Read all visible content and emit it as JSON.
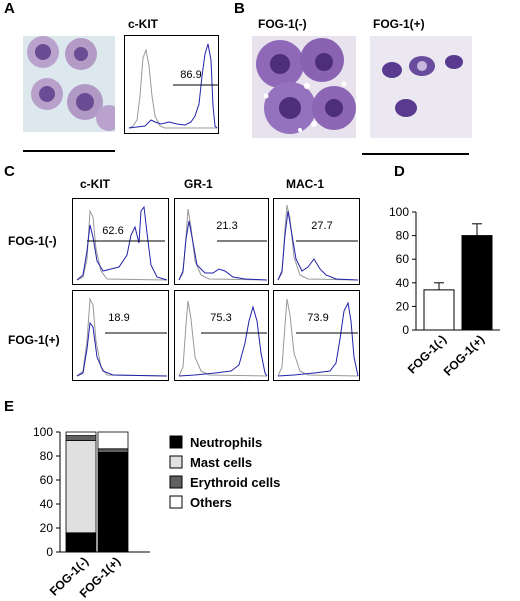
{
  "panels": {
    "A": {
      "letter": "A",
      "hist_title": "c-KIT",
      "hist_value": "86.9"
    },
    "B": {
      "letter": "B",
      "label_left": "FOG-1(-)",
      "label_right": "FOG-1(+)"
    },
    "C": {
      "letter": "C",
      "columns": [
        "c-KIT",
        "GR-1",
        "MAC-1"
      ],
      "rows": [
        "FOG-1(-)",
        "FOG-1(+)"
      ],
      "values": [
        [
          "62.6",
          "21.3",
          "27.7"
        ],
        [
          "18.9",
          "75.3",
          "73.9"
        ]
      ]
    },
    "D": {
      "letter": "D"
    },
    "E": {
      "letter": "E"
    }
  },
  "chart_data": [
    {
      "panel": "D",
      "type": "bar",
      "categories": [
        "FOG-1(-)",
        "FOG-1(+)"
      ],
      "values": [
        34,
        80
      ],
      "errors": [
        6,
        10
      ],
      "colors": [
        "#ffffff",
        "#000000"
      ],
      "ylim": [
        0,
        100
      ],
      "yticks": [
        0,
        20,
        40,
        60,
        80,
        100
      ],
      "title": "",
      "xlabel": "",
      "ylabel": ""
    },
    {
      "panel": "E",
      "type": "bar",
      "stacked": true,
      "categories": [
        "FOG-1(-)",
        "FOG-1(+)"
      ],
      "series": [
        {
          "name": "Neutrophils",
          "values": [
            16,
            83
          ],
          "color": "#000000"
        },
        {
          "name": "Mast cells",
          "values": [
            77,
            0
          ],
          "color": "#e0e0e0"
        },
        {
          "name": "Erythroid cells",
          "values": [
            4,
            3
          ],
          "color": "#606060"
        },
        {
          "name": "Others",
          "values": [
            3,
            14
          ],
          "color": "#ffffff"
        }
      ],
      "ylim": [
        0,
        100
      ],
      "yticks": [
        0,
        20,
        40,
        60,
        80,
        100
      ],
      "legend_position": "right",
      "title": "",
      "xlabel": "",
      "ylabel": ""
    }
  ]
}
